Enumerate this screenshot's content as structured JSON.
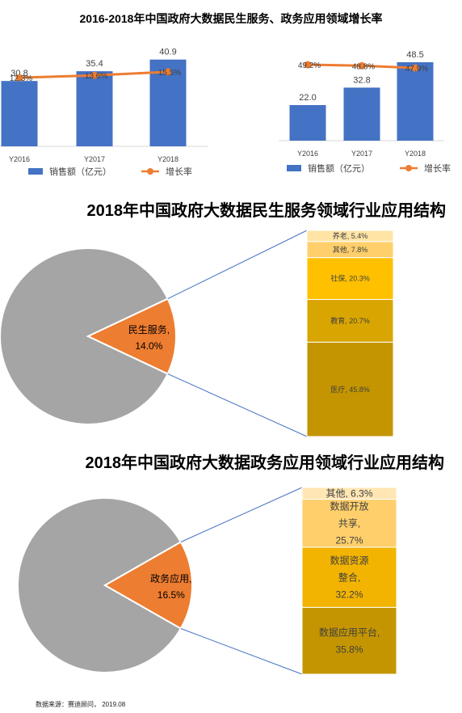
{
  "page_title": "2016-2018年中国政府大数据民生服务、政务应用领域增长率",
  "source": "数据来源：赛迪顾问， 2019.08",
  "legend": {
    "sales": "销售额（亿元）",
    "growth": "增长率"
  },
  "colors": {
    "bar": "#4472C4",
    "line": "#ED7D31",
    "pie_gray": "#A5A5A5",
    "pie_orange": "#ED7D31"
  },
  "chart_data": [
    {
      "type": "bar",
      "categories": [
        "Y2016",
        "Y2017",
        "Y2018"
      ],
      "series": [
        {
          "name": "销售额（亿元）",
          "values": [
            30.8,
            35.4,
            40.9
          ],
          "labels": [
            "30.8",
            "35.4",
            "40.9"
          ]
        },
        {
          "name": "增长率",
          "type": "line",
          "values": [
            12.3,
            13.6,
            15.5
          ],
          "labels": [
            "12.3%",
            "13.6%",
            "15.5%"
          ]
        }
      ]
    },
    {
      "type": "bar",
      "categories": [
        "Y2016",
        "Y2017",
        "Y2018"
      ],
      "series": [
        {
          "name": "销售额（亿元）",
          "values": [
            22.0,
            32.8,
            48.5
          ],
          "labels": [
            "22.0",
            "32.8",
            "48.5"
          ]
        },
        {
          "name": "增长率",
          "type": "line",
          "values": [
            49.2,
            48.8,
            47.9
          ],
          "labels": [
            "49.2%",
            "48.8%",
            "47.9%"
          ]
        }
      ]
    },
    {
      "type": "pie",
      "title": "2018年中国政府大数据民生服务领域行业应用结构",
      "highlight": {
        "label": "民生服务,",
        "value": 14.0,
        "value_label": "14.0%"
      },
      "breakdown": [
        {
          "label": "医疗, 45.8%",
          "value": 45.8
        },
        {
          "label": "教育, 20.7%",
          "value": 20.7
        },
        {
          "label": "社保, 20.3%",
          "value": 20.3
        },
        {
          "label": "其他, 7.8%",
          "value": 7.8
        },
        {
          "label": "养老, 5.4%",
          "value": 5.4
        }
      ]
    },
    {
      "type": "pie",
      "title": "2018年中国政府大数据政务应用领域行业应用结构",
      "highlight": {
        "label": "政务应用,",
        "value": 16.5,
        "value_label": "16.5%"
      },
      "breakdown": [
        {
          "label_lines": [
            "数据应用平台,",
            "35.8%"
          ],
          "value": 35.8
        },
        {
          "label_lines": [
            "数据资源",
            "整合,",
            "32.2%"
          ],
          "value": 32.2
        },
        {
          "label_lines": [
            "数据开放",
            "共享,",
            "25.7%"
          ],
          "value": 25.7
        },
        {
          "label_lines": [
            "其他, 6.3%"
          ],
          "value": 6.3
        }
      ]
    }
  ]
}
